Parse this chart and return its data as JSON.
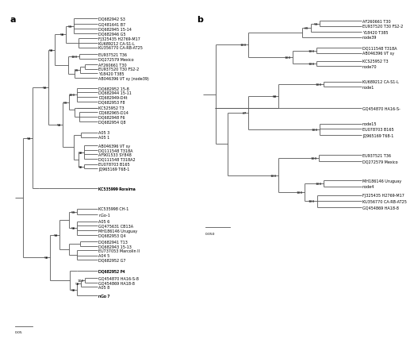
{
  "background": "#ffffff",
  "line_color": "#555555",
  "text_color": "#000000",
  "lw": 0.6,
  "leaf_fontsize": 3.5,
  "bootstrap_fontsize": 3.2,
  "label_fontsize": 8,
  "panel_a": {
    "leaves_upper": [
      [
        0.965,
        "DQ682942 S3"
      ],
      [
        0.95,
        "GQ481641 B7"
      ],
      [
        0.935,
        "DQ682945 15-14"
      ],
      [
        0.921,
        "DQ682946 G5"
      ],
      [
        0.905,
        "FJ325435 H2769-M17"
      ],
      [
        0.891,
        "KU689212 CA-S1-L"
      ],
      [
        0.877,
        "KU356770 CA-RB-AT25"
      ],
      [
        0.857,
        "EU937521 T36"
      ],
      [
        0.843,
        "DQ272579 Mexico"
      ],
      [
        0.825,
        "AF260661 T30"
      ],
      [
        0.812,
        "EU937520 T30 FS2-2"
      ],
      [
        0.798,
        "Y18420 T385"
      ],
      [
        0.784,
        "AB046396 VT sy (node39)"
      ],
      [
        0.753,
        "DQ682952 15-8"
      ],
      [
        0.74,
        "DQ682944 15-11"
      ],
      [
        0.726,
        "DQ682949-D4t"
      ],
      [
        0.712,
        "DQ682953 F8"
      ],
      [
        0.693,
        "KC525952 T3"
      ],
      [
        0.68,
        "DQ682965-D14"
      ],
      [
        0.666,
        "DQ682948 F6"
      ],
      [
        0.652,
        "DQ682954 Q8"
      ],
      [
        0.618,
        "A05 3"
      ],
      [
        0.604,
        "A05 1"
      ],
      [
        0.578,
        "AB046396 VT sy"
      ],
      [
        0.564,
        "DQ111548 T318A"
      ],
      [
        0.551,
        "AF901533 SY848"
      ],
      [
        0.538,
        "DQ111548 T318A2"
      ],
      [
        0.521,
        "EU078703 B165"
      ],
      [
        0.508,
        "JQ965169 T68-1"
      ],
      [
        0.447,
        "KC535999 Roraima"
      ]
    ],
    "leaves_lower": [
      [
        0.385,
        "KC535998 CH-1"
      ],
      [
        0.368,
        "nGo-1"
      ],
      [
        0.347,
        "A05 6"
      ],
      [
        0.333,
        "GQ475631 CB13A"
      ],
      [
        0.319,
        "MH186146 Uruguay"
      ],
      [
        0.305,
        "DQ682953 Q4"
      ],
      [
        0.286,
        "DQ682941 T13"
      ],
      [
        0.272,
        "DQ682943 15-13"
      ],
      [
        0.258,
        "EU737053 Marcolin II"
      ],
      [
        0.243,
        "A04 5"
      ],
      [
        0.229,
        "DQ682952 G7"
      ],
      [
        0.196,
        "DQ682952 P4"
      ],
      [
        0.175,
        "GQ454870 HA16-S-8"
      ],
      [
        0.161,
        "GQ454869 HA18-8"
      ],
      [
        0.147,
        "A05 8"
      ],
      [
        0.12,
        "nGo 7"
      ]
    ]
  },
  "panel_b": {
    "leaves": [
      [
        0.958,
        "AF260661 T30"
      ],
      [
        0.942,
        "EU937520 T30 FS2-2"
      ],
      [
        0.924,
        "Y18420 T385"
      ],
      [
        0.908,
        "node39"
      ],
      [
        0.876,
        "DQ111548 T318A"
      ],
      [
        0.86,
        "AB046396 VT sy"
      ],
      [
        0.836,
        "KCS25952 T3"
      ],
      [
        0.82,
        "node70"
      ],
      [
        0.773,
        "KU689212 CA-S1-L"
      ],
      [
        0.757,
        "node1"
      ],
      [
        0.692,
        "GQ454870 HA16-S-"
      ],
      [
        0.645,
        "node15"
      ],
      [
        0.629,
        "EU078703 B165"
      ],
      [
        0.61,
        "JQ965169 T68-1"
      ],
      [
        0.549,
        "EU937521 T36"
      ],
      [
        0.53,
        "DQ272579 Mexico"
      ],
      [
        0.472,
        "MH186146 Uruguay"
      ],
      [
        0.453,
        "node4"
      ],
      [
        0.427,
        "FJ325435 H2769-M17"
      ],
      [
        0.408,
        "KU356770 CA-RB-AT25"
      ],
      [
        0.389,
        "GQ454869 HA18-8"
      ]
    ]
  }
}
